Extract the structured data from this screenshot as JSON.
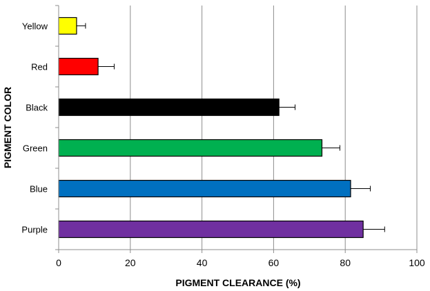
{
  "chart_data": {
    "type": "bar",
    "orientation": "horizontal",
    "xlabel": "PIGMENT CLEARANCE (%)",
    "ylabel": "PIGMENT COLOR",
    "xlim": [
      0,
      100
    ],
    "xticks": [
      0,
      20,
      40,
      60,
      80,
      100
    ],
    "grid": true,
    "categories": [
      "Yellow",
      "Red",
      "Black",
      "Green",
      "Blue",
      "Purple"
    ],
    "values": [
      5,
      11,
      61.5,
      73.5,
      81.5,
      85
    ],
    "errors": [
      2.5,
      4.5,
      4.5,
      5,
      5.5,
      6
    ],
    "colors": [
      "#ffff00",
      "#ff0000",
      "#000000",
      "#00b050",
      "#0070c0",
      "#7030a0"
    ]
  }
}
